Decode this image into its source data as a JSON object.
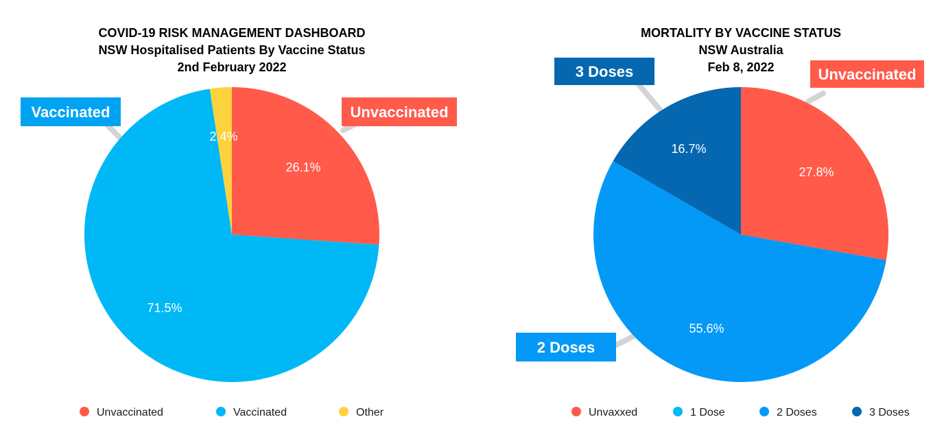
{
  "chart_data": [
    {
      "type": "pie",
      "title": "COVID-19 RISK MANAGEMENT DASHBOARD",
      "subtitle": "NSW Hospitalised Patients By Vaccine Status",
      "date": "2nd February 2022",
      "slices": [
        {
          "label": "Unvaccinated",
          "value": 26.1,
          "value_label": "26.1%",
          "color": "#ff5a4a"
        },
        {
          "label": "Vaccinated",
          "value": 71.5,
          "value_label": "71.5%",
          "color": "#00b8f6"
        },
        {
          "label": "Other",
          "value": 2.4,
          "value_label": "2.4%",
          "color": "#fdd23f"
        }
      ],
      "callouts": [
        {
          "text": "Unvaccinated",
          "color": "#ff5a4a"
        },
        {
          "text": "Vaccinated",
          "color": "#00a3f2"
        }
      ],
      "legend": [
        {
          "label": "Unvaccinated",
          "color": "#ff5a4a"
        },
        {
          "label": "Vaccinated",
          "color": "#00b8f6"
        },
        {
          "label": "Other",
          "color": "#fdd23f"
        }
      ],
      "legend_position": "bottom"
    },
    {
      "type": "pie",
      "title": "MORTALITY BY VACCINE STATUS",
      "subtitle": "NSW Australia",
      "date": "Feb 8, 2022",
      "slices": [
        {
          "label": "Unvaxxed",
          "value": 27.8,
          "value_label": "27.8%",
          "color": "#ff5a4a"
        },
        {
          "label": "1 Dose",
          "value": 0,
          "value_label": "",
          "color": "#00b8f6"
        },
        {
          "label": "2 Doses",
          "value": 55.6,
          "value_label": "55.6%",
          "color": "#0499f6"
        },
        {
          "label": "3 Doses",
          "value": 16.7,
          "value_label": "16.7%",
          "color": "#0467b0"
        }
      ],
      "callouts": [
        {
          "text": "Unvaccinated",
          "color": "#ff5a4a"
        },
        {
          "text": "2 Doses",
          "color": "#0499f6"
        },
        {
          "text": "3 Doses",
          "color": "#0467b0"
        }
      ],
      "legend": [
        {
          "label": "Unvaxxed",
          "color": "#ff5a4a"
        },
        {
          "label": "1 Dose",
          "color": "#00b8f6"
        },
        {
          "label": "2 Doses",
          "color": "#0499f6"
        },
        {
          "label": "3 Doses",
          "color": "#0467b0"
        }
      ],
      "legend_position": "bottom"
    }
  ]
}
